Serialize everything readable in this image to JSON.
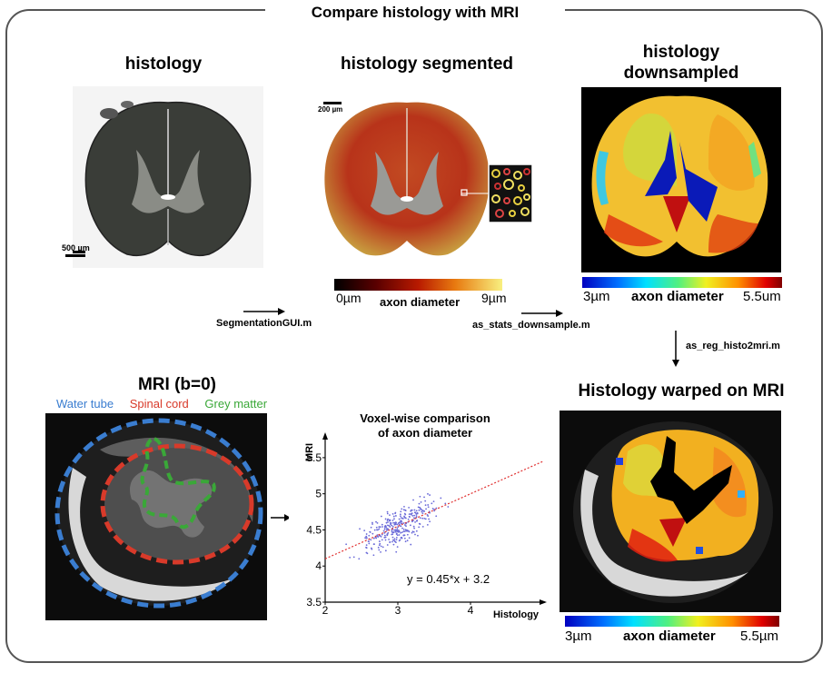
{
  "title": "Compare histology with MRI",
  "panels": {
    "histology": {
      "title": "histology",
      "scalebar": "500 µm"
    },
    "segmented": {
      "title": "histology segmented",
      "scalebar": "200 µm",
      "colorbar": {
        "min": "0µm",
        "max": "9µm",
        "label": "axon diameter"
      }
    },
    "downsampled": {
      "title_line1": "histology",
      "title_line2": "downsampled",
      "colorbar": {
        "min": "3µm",
        "max": "5.5um",
        "label": "axon diameter"
      }
    },
    "mri": {
      "title": "MRI (b=0)",
      "legend": [
        {
          "label": "Water tube",
          "color": "#3a7dd0"
        },
        {
          "label": "Spinal cord",
          "color": "#d83a2a"
        },
        {
          "label": "Grey matter",
          "color": "#3aa838"
        }
      ]
    },
    "warped": {
      "title": "Histology warped on MRI",
      "colorbar": {
        "min": "3µm",
        "max": "5.5µm",
        "label": "axon diameter"
      }
    }
  },
  "steps": {
    "step1": "SegmentationGUI.m",
    "step2": "as_stats_downsample.m",
    "step3": "as_reg_histo2mri.m"
  },
  "chart_data": {
    "type": "scatter",
    "title_line1": "Voxel-wise comparison",
    "title_line2": "of axon diameter",
    "xlabel": "Histology",
    "ylabel": "MRI",
    "xlim": [
      2,
      5
    ],
    "ylim": [
      3.5,
      5.7
    ],
    "xticks": [
      "2",
      "3",
      "4"
    ],
    "yticks": [
      "3.5",
      "4",
      "4.5",
      "5",
      "5.5"
    ],
    "fit": {
      "slope": 0.45,
      "intercept": 3.2,
      "label": "y = 0.45*x + 3.2",
      "color": "#e03030"
    },
    "point_color": "#6a6ad8"
  }
}
